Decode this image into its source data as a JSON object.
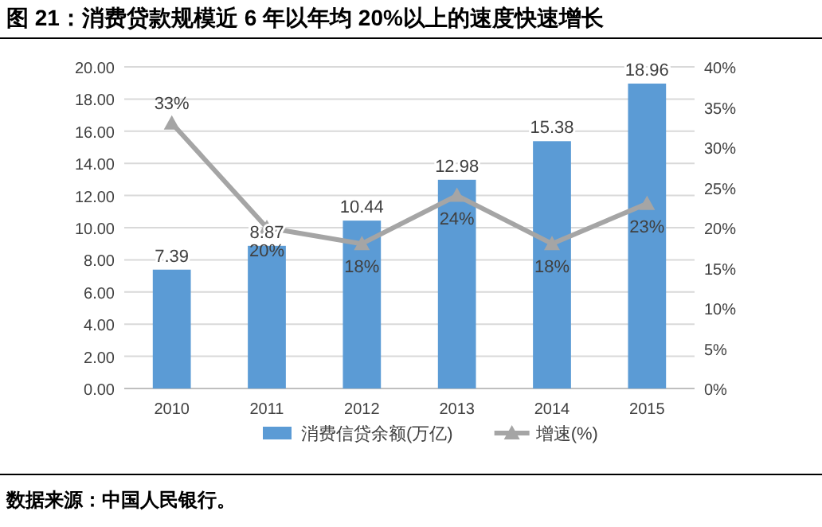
{
  "chart_data": {
    "type": "bar",
    "title": "图 21：消费贷款规模近 6 年以年均 20%以上的速度快速增长",
    "categories": [
      "2010",
      "2011",
      "2012",
      "2013",
      "2014",
      "2015"
    ],
    "series": [
      {
        "name": "消费信贷余额(万亿)",
        "color": "#5b9bd5",
        "values": [
          7.39,
          8.87,
          10.44,
          12.98,
          15.38,
          18.96
        ],
        "value_labels": [
          "7.39",
          "8.87",
          "10.44",
          "12.98",
          "15.38",
          "18.96"
        ]
      },
      {
        "name": "增速(%)",
        "type": "line",
        "axis": "y2",
        "color": "#a5a5a5",
        "marker": "triangle",
        "values": [
          33,
          20,
          18,
          24,
          18,
          23
        ],
        "value_labels": [
          "33%",
          "20%",
          "18%",
          "24%",
          "18%",
          "23%"
        ]
      }
    ],
    "ylim": [
      0,
      20
    ],
    "yticks": [
      {
        "value": 0,
        "label": "0.00"
      },
      {
        "value": 2,
        "label": "2.00"
      },
      {
        "value": 4,
        "label": "4.00"
      },
      {
        "value": 6,
        "label": "6.00"
      },
      {
        "value": 8,
        "label": "8.00"
      },
      {
        "value": 10,
        "label": "10.00"
      },
      {
        "value": 12,
        "label": "12.00"
      },
      {
        "value": 14,
        "label": "14.00"
      },
      {
        "value": 16,
        "label": "16.00"
      },
      {
        "value": 18,
        "label": "18.00"
      },
      {
        "value": 20,
        "label": "20.00"
      }
    ],
    "y2lim": [
      0,
      40
    ],
    "y2ticks": [
      {
        "value": 0,
        "label": "0%"
      },
      {
        "value": 5,
        "label": "5%"
      },
      {
        "value": 10,
        "label": "10%"
      },
      {
        "value": 15,
        "label": "15%"
      },
      {
        "value": 20,
        "label": "20%"
      },
      {
        "value": 25,
        "label": "25%"
      },
      {
        "value": 30,
        "label": "30%"
      },
      {
        "value": 35,
        "label": "35%"
      },
      {
        "value": 40,
        "label": "40%"
      }
    ],
    "grid": "y",
    "legend": "bottom",
    "line_style": "solid",
    "annotations": [
      "数据来源：中国人民银行。"
    ]
  }
}
